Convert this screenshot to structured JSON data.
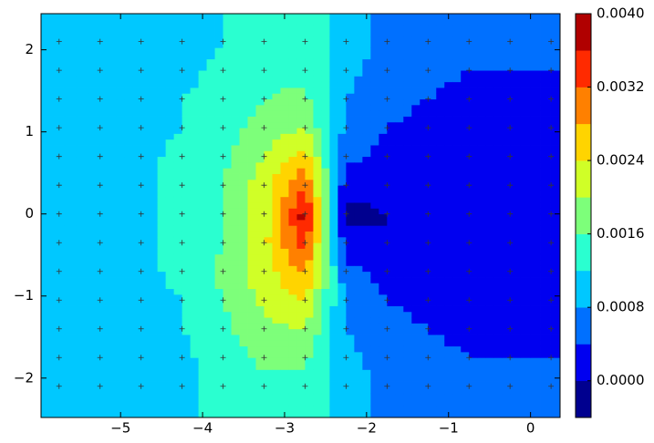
{
  "chart_data": {
    "type": "contour",
    "x": [
      -5.75,
      -5.25,
      -4.75,
      -4.25,
      -3.75,
      -3.25,
      -2.75,
      -2.25,
      -1.75,
      -1.25,
      -0.75,
      -0.25,
      0.25
    ],
    "y": [
      -2.1,
      -1.75,
      -1.4,
      -1.05,
      -0.7,
      -0.35,
      0,
      0.35,
      0.7,
      1.05,
      1.4,
      1.75,
      2.1
    ],
    "z": [
      [
        0.0009,
        0.0009,
        0.001,
        0.0011,
        0.0013,
        0.0015,
        0.0015,
        0.001,
        0.0007,
        0.0006,
        0.0005,
        0.0005,
        0.0005
      ],
      [
        0.0009,
        0.0009,
        0.001,
        0.0011,
        0.0014,
        0.0017,
        0.0017,
        0.0009,
        0.0006,
        0.0005,
        0.0004,
        0.0004,
        0.0004
      ],
      [
        0.0009,
        0.001,
        0.001,
        0.0012,
        0.0015,
        0.0019,
        0.002,
        0.0008,
        0.0005,
        0.0004,
        0.0003,
        0.0003,
        0.0003
      ],
      [
        0.0009,
        0.001,
        0.0011,
        0.0012,
        0.0016,
        0.0021,
        0.0024,
        0.0007,
        0.0004,
        0.0003,
        0.0003,
        0.0003,
        0.0003
      ],
      [
        0.0008,
        0.001,
        0.0011,
        0.0013,
        0.0017,
        0.0022,
        0.0029,
        0.0005,
        0.0003,
        0.0003,
        0.0003,
        0.0003,
        0.0003
      ],
      [
        0.0008,
        0.001,
        0.0011,
        0.0013,
        0.0016,
        0.0023,
        0.0034,
        0.0001,
        0.0,
        0.0002,
        0.0003,
        0.0003,
        0.0003
      ],
      [
        0.0008,
        0.001,
        0.0011,
        0.0013,
        0.0016,
        0.0022,
        0.0038,
        -0.0001,
        0.0,
        0.0002,
        0.0003,
        0.0003,
        0.0003
      ],
      [
        0.0008,
        0.001,
        0.0011,
        0.0013,
        0.0016,
        0.0022,
        0.0032,
        0.0001,
        0.0001,
        0.0002,
        0.0003,
        0.0003,
        0.0003
      ],
      [
        0.0008,
        0.001,
        0.0011,
        0.0013,
        0.0015,
        0.002,
        0.0026,
        0.0005,
        0.0003,
        0.0003,
        0.0003,
        0.0003,
        0.0003
      ],
      [
        0.0009,
        0.001,
        0.0011,
        0.0012,
        0.0014,
        0.0018,
        0.002,
        0.0007,
        0.0004,
        0.0003,
        0.0003,
        0.0003,
        0.0003
      ],
      [
        0.0009,
        0.001,
        0.001,
        0.0012,
        0.0013,
        0.0016,
        0.0017,
        0.0008,
        0.0005,
        0.0004,
        0.0003,
        0.0003,
        0.0003
      ],
      [
        0.0009,
        0.0009,
        0.001,
        0.0011,
        0.0013,
        0.0015,
        0.0015,
        0.0009,
        0.0006,
        0.0005,
        0.0004,
        0.0004,
        0.0004
      ],
      [
        0.0009,
        0.0009,
        0.001,
        0.0011,
        0.0012,
        0.0014,
        0.0014,
        0.001,
        0.0007,
        0.0006,
        0.0005,
        0.0005,
        0.0005
      ]
    ],
    "levels": [
      -0.0004,
      0,
      0.0004,
      0.0008,
      0.0012,
      0.0016,
      0.002,
      0.0024,
      0.0028,
      0.0032,
      0.0036,
      0.004
    ],
    "colors": [
      "#00008f",
      "#0000f0",
      "#0070ff",
      "#00c8ff",
      "#2affd0",
      "#7dff7a",
      "#d0ff27",
      "#ffd400",
      "#ff8000",
      "#ff2a00",
      "#b00000"
    ],
    "xlim": [
      -5.97,
      0.36
    ],
    "ylim": [
      -2.48,
      2.44
    ],
    "xticks": [
      {
        "value": -5,
        "label": "−5"
      },
      {
        "value": -4,
        "label": "−4"
      },
      {
        "value": -3,
        "label": "−3"
      },
      {
        "value": -2,
        "label": "−2"
      },
      {
        "value": -1,
        "label": "−1"
      },
      0
    ],
    "yticks": [
      {
        "value": -2,
        "label": "−2"
      },
      {
        "value": -1,
        "label": "−1"
      },
      0,
      1,
      2
    ],
    "colorbar_ticks": [
      {
        "value": 0,
        "label": "0.0000"
      },
      {
        "value": 0.0008,
        "label": "0.0008"
      },
      {
        "value": 0.0016,
        "label": "0.0016"
      },
      {
        "value": 0.0024,
        "label": "0.0024"
      },
      {
        "value": 0.0032,
        "label": "0.0032"
      },
      {
        "value": 0.004,
        "label": "0.0040"
      }
    ]
  }
}
